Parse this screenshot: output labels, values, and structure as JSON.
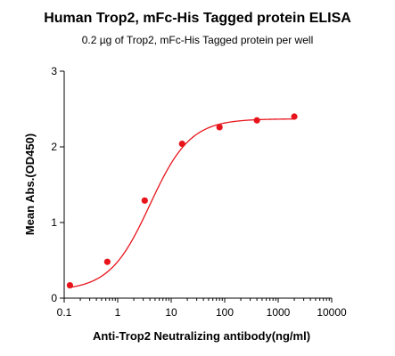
{
  "chart_data": {
    "type": "scatter",
    "title": "Human Trop2, mFc-His Tagged protein ELISA",
    "subtitle": "0.2 µg of Trop2, mFc-His Tagged protein per well",
    "xlabel": "Anti-Trop2 Neutralizing antibody(ng/ml)",
    "ylabel": "Mean Abs.(OD450)",
    "xscale": "log",
    "xlim": [
      0.1,
      10000
    ],
    "ylim": [
      0,
      3
    ],
    "xticks": [
      0.1,
      1,
      10,
      100,
      1000,
      10000
    ],
    "xtick_labels": [
      "0.1",
      "1",
      "10",
      "100",
      "1000",
      "10000"
    ],
    "yticks": [
      0,
      1,
      2,
      3
    ],
    "ytick_labels": [
      "0",
      "1",
      "2",
      "3"
    ],
    "grid": false,
    "color": "#e8141b",
    "series": [
      {
        "x": [
          0.128,
          0.64,
          3.2,
          16,
          80,
          400,
          2000
        ],
        "y": [
          0.17,
          0.48,
          1.29,
          2.04,
          2.26,
          2.35,
          2.4
        ]
      }
    ],
    "fit": {
      "type": "4PL",
      "bottom": 0.1,
      "top": 2.37,
      "ec50": 4.0,
      "hill": 1.15
    }
  }
}
